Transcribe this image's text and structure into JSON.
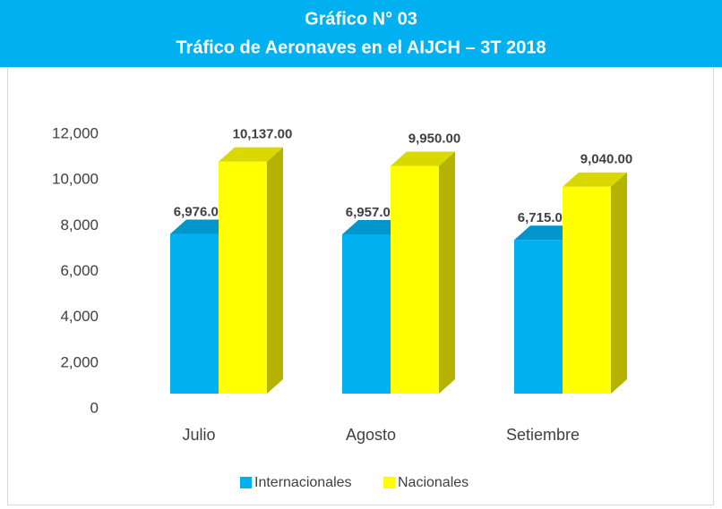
{
  "chart_data": {
    "type": "bar3d",
    "title": "Gráfico N° 03",
    "subtitle": "Tráfico de Aeronaves en el AIJCH – 3T 2018",
    "categories": [
      "Julio",
      "Agosto",
      "Setiembre"
    ],
    "series": [
      {
        "name": "Internacionales",
        "color": "#00b0f0",
        "values": [
          6976,
          6957,
          6715
        ],
        "value_labels": [
          "6,976.00",
          "6,957.00",
          "6,715.00"
        ]
      },
      {
        "name": "Nacionales",
        "color": "#ffff00",
        "values": [
          10137,
          9950,
          9040
        ],
        "value_labels": [
          "10,137.00",
          "9,950.00",
          "9,040.00"
        ]
      }
    ],
    "ylim": [
      0,
      12000
    ],
    "yticks": [
      0,
      {
        "value": 2000,
        "label": "2,000"
      },
      {
        "value": 4000,
        "label": "4,000"
      },
      {
        "value": 6000,
        "label": "6,000"
      },
      {
        "value": 8000,
        "label": "8,000"
      },
      {
        "value": 10000,
        "label": "10,000"
      },
      {
        "value": 12000,
        "label": "12,000"
      }
    ],
    "grid": false,
    "legend": "bottom"
  }
}
